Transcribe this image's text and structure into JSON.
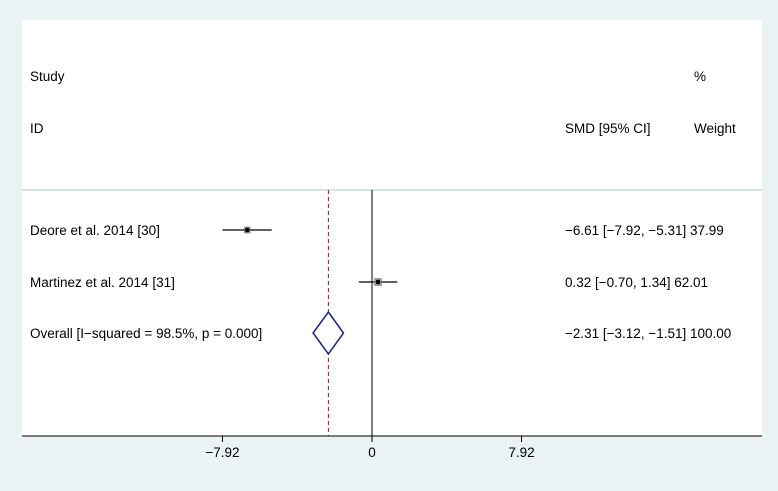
{
  "chart_data": {
    "type": "forest",
    "headers": {
      "study_top": "Study",
      "study_bottom": "ID",
      "smd": "SMD [95% CI]",
      "weight_top": "%",
      "weight_bottom": "Weight"
    },
    "x_ticks": [
      {
        "value": -7.92,
        "label": "−7.92"
      },
      {
        "value": 0,
        "label": "0"
      },
      {
        "value": 7.92,
        "label": "7.92"
      }
    ],
    "xlim": [
      -12.2,
      12.2
    ],
    "null_line": 0,
    "overall_line": -2.31,
    "studies": [
      {
        "label": "Deore et al. 2014 [30]",
        "smd": -6.61,
        "lo": -7.92,
        "hi": -5.31,
        "weight": 37.99,
        "ci_text": "−6.61 [−7.92, −5.31] 37.99"
      },
      {
        "label": "Martinez et al. 2014 [31]",
        "smd": 0.32,
        "lo": -0.7,
        "hi": 1.34,
        "weight": 62.01,
        "ci_text": "0.32 [−0.70, 1.34] 62.01"
      }
    ],
    "overall": {
      "label": "Overall  [I−squared = 98.5%, p = 0.000]",
      "smd": -2.31,
      "lo": -3.12,
      "hi": -1.51,
      "weight": 100.0,
      "ci_text": "−2.31 [−3.12, −1.51] 100.00"
    },
    "colors": {
      "background": "#eaf2f3",
      "plot_area": "#ffffff",
      "diamond": "#1a237e",
      "overall_line": "#8b1a1a",
      "header_rule": "#b6d2d0"
    }
  }
}
